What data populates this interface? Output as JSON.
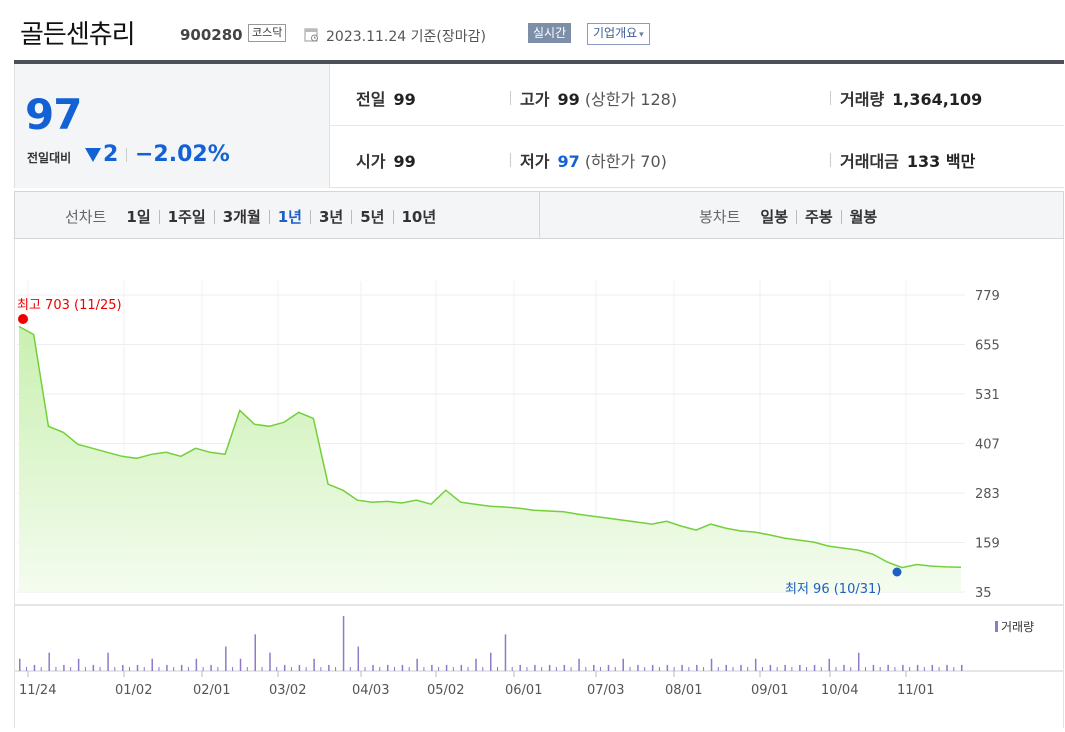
{
  "header": {
    "name": "골든센츄리",
    "code": "900280",
    "market": "코스닥",
    "date_text": "2023.11.24 기준(장마감)",
    "realtime_label": "실시간",
    "company_label": "기업개요",
    "company_caret": "▾"
  },
  "summary": {
    "price": "97",
    "diff_label": "전일대비",
    "diff_value": "2",
    "diff_pct": "−2.02%",
    "prev_close": {
      "label": "전일",
      "value": "99"
    },
    "high": {
      "label": "고가",
      "value": "99",
      "sub": "(상한가 128)"
    },
    "volume": {
      "label": "거래량",
      "value": "1,364,109"
    },
    "open": {
      "label": "시가",
      "value": "99"
    },
    "low": {
      "label": "저가",
      "value": "97",
      "sub": "(하한가 70)"
    },
    "amount": {
      "label": "거래대금",
      "value": "133 백만"
    }
  },
  "tabs": {
    "line_label": "선차트",
    "line_items": [
      "1일",
      "1주일",
      "3개월",
      "1년",
      "3년",
      "5년",
      "10년"
    ],
    "line_active": "1년",
    "candle_label": "봉차트",
    "candle_items": [
      "일봉",
      "주봉",
      "월봉"
    ]
  },
  "chart_data": {
    "type": "area",
    "y_ticks": [
      "779",
      "655",
      "531",
      "407",
      "283",
      "159",
      "35"
    ],
    "ylim": [
      35,
      779
    ],
    "x_ticks": [
      "11/24",
      "01/02",
      "02/01",
      "03/02",
      "04/03",
      "05/02",
      "06/01",
      "07/03",
      "08/01",
      "09/01",
      "10/04",
      "11/01"
    ],
    "high_label": "최고 703 (11/25)",
    "low_label": "최저 96 (10/31)",
    "volume_label": "거래량",
    "colors": {
      "line": "#74d03a",
      "fill_top": "#c9f0b0",
      "fill_bottom": "#f4fcef",
      "volume": "#8f79c9",
      "high": "#ee0000",
      "low": "#1d5fc4"
    },
    "series": [
      {
        "values": [
          700,
          680,
          450,
          435,
          405,
          395,
          385,
          375,
          370,
          380,
          385,
          375,
          395,
          385,
          380,
          490,
          455,
          450,
          460,
          485,
          470,
          305,
          290,
          265,
          260,
          262,
          258,
          265,
          255,
          290,
          260,
          255,
          250,
          248,
          245,
          240,
          238,
          236,
          230,
          225,
          220,
          215,
          210,
          205,
          212,
          200,
          190,
          205,
          195,
          188,
          185,
          178,
          170,
          165,
          160,
          150,
          145,
          140,
          130,
          110,
          96,
          104,
          100,
          98,
          97
        ]
      }
    ],
    "volume_values": [
      2,
      1,
      3,
      1,
      2,
      1,
      3,
      1,
      1,
      2,
      1,
      1,
      2,
      1,
      4,
      2,
      6,
      3,
      1,
      1,
      2,
      1,
      9,
      4,
      1,
      1,
      1,
      2,
      1,
      1,
      1,
      2,
      3,
      6,
      1,
      1,
      1,
      1,
      2,
      1,
      1,
      2,
      1,
      1,
      1,
      1,
      1,
      2,
      1,
      1,
      2,
      1,
      1,
      1,
      1,
      2,
      1,
      3,
      1,
      1,
      1,
      1,
      1,
      1,
      1
    ]
  }
}
